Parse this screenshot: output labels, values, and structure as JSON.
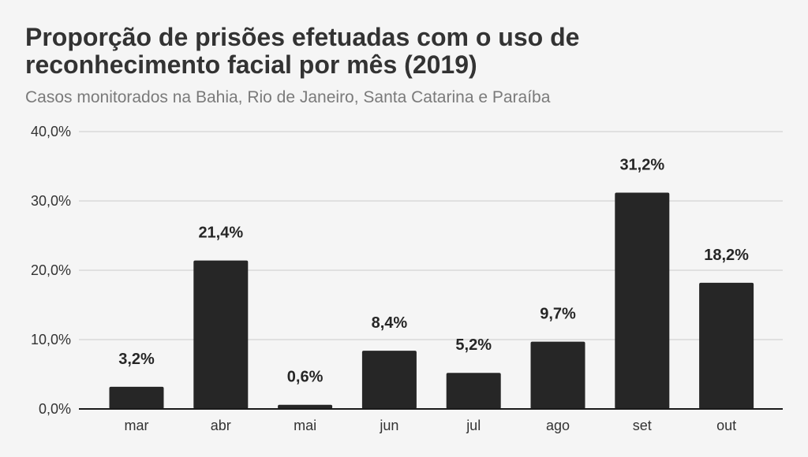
{
  "chart_data": {
    "type": "bar",
    "title": "Proporção de prisões efetuadas com o uso de reconhecimento facial por mês (2019)",
    "subtitle": "Casos monitorados na Bahia, Rio de Janeiro, Santa Catarina e Paraíba",
    "xlabel": "",
    "ylabel": "",
    "categories": [
      "mar",
      "abr",
      "mai",
      "jun",
      "jul",
      "ago",
      "set",
      "out"
    ],
    "values": [
      3.2,
      21.4,
      0.6,
      8.4,
      5.2,
      9.7,
      31.2,
      18.2
    ],
    "value_labels": [
      "3,2%",
      "21,4%",
      "0,6%",
      "8,4%",
      "5,2%",
      "9,7%",
      "31,2%",
      "18,2%"
    ],
    "ylim": [
      0,
      40
    ],
    "yticks": [
      0,
      10,
      20,
      30,
      40
    ],
    "ytick_labels": [
      "0,0%",
      "10,0%",
      "20,0%",
      "30,0%",
      "40,0%"
    ],
    "grid": true,
    "legend": "none",
    "colors": {
      "bar": "#262626",
      "grid": "#d9d9d9",
      "axis": "#1a1a1a",
      "background": "#f5f5f5"
    }
  }
}
